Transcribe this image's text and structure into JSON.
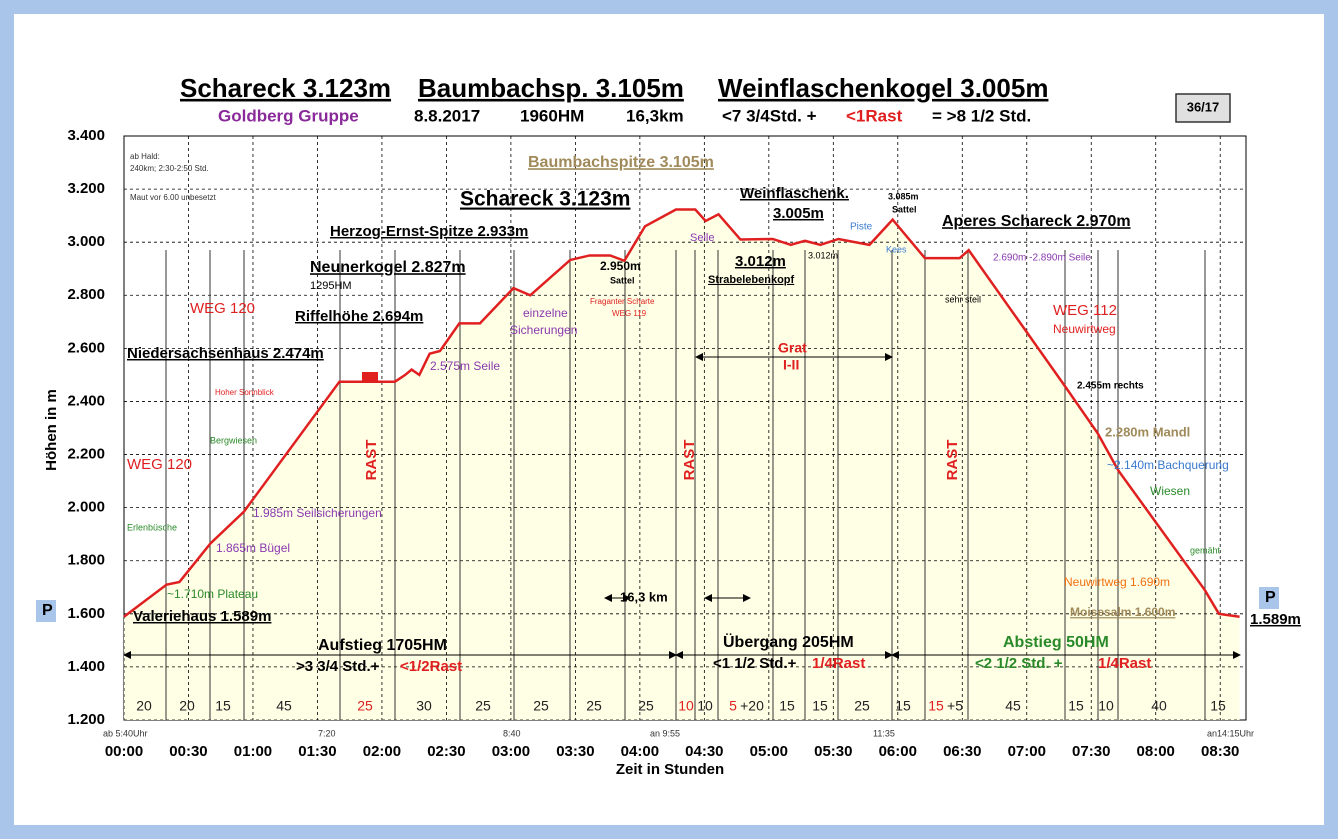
{
  "header": {
    "title_parts": [
      "Schareck 3.123m",
      "Baumbachsp. 3.105m",
      "Weinflaschenkogel 3.005m"
    ],
    "subtitle_parts": [
      {
        "text": "Goldberg Gruppe",
        "color": "#8a2a9a"
      },
      {
        "text": "8.8.2017",
        "color": "#000000"
      },
      {
        "text": "1960HM",
        "color": "#000000"
      },
      {
        "text": "16,3km",
        "color": "#000000"
      },
      {
        "text": "<7 3/4Std. +",
        "color": "#000000"
      },
      {
        "text": "<1Rast",
        "color": "#e02020"
      },
      {
        "text": "= >8 1/2 Std.",
        "color": "#000000"
      }
    ],
    "badge": "36/17"
  },
  "chart_data": {
    "type": "line",
    "color": "#e02020",
    "fill": "#ffffe6",
    "grid": true,
    "y_label": "Höhen in m",
    "x_label": "Zeit in Stunden",
    "x": [
      0,
      0.33,
      0.43,
      0.67,
      0.93,
      1.67,
      2.1,
      2.18,
      2.23,
      2.29,
      2.37,
      2.45,
      2.6,
      2.76,
      3.02,
      3.15,
      3.46,
      3.61,
      3.77,
      3.88,
      4.04,
      4.28,
      4.43,
      4.51,
      4.61,
      4.78,
      5.03,
      5.17,
      5.28,
      5.4,
      5.54,
      5.78,
      5.96,
      6.21,
      6.48,
      6.55,
      7.3,
      7.55,
      7.71,
      8.38,
      8.49,
      8.65
    ],
    "values": [
      1589,
      1710,
      1720,
      1865,
      1985,
      2474,
      2474,
      2500,
      2520,
      2500,
      2580,
      2590,
      2694,
      2694,
      2827,
      2800,
      2933,
      2950,
      2950,
      2930,
      3060,
      3123,
      3123,
      3080,
      3105,
      3010,
      3012,
      2990,
      3005,
      2990,
      3012,
      2990,
      3085,
      2940,
      2940,
      2970,
      2455,
      2280,
      2140,
      1690,
      1600,
      1589
    ],
    "xlim": [
      0,
      8.7
    ],
    "ylim": [
      1200,
      3400
    ],
    "xticks": [
      {
        "value": 0,
        "label": "00:00"
      },
      {
        "value": 0.5,
        "label": "00:30"
      },
      {
        "value": 1,
        "label": "01:00"
      },
      {
        "value": 1.5,
        "label": "01:30"
      },
      {
        "value": 2,
        "label": "02:00"
      },
      {
        "value": 2.5,
        "label": "02:30"
      },
      {
        "value": 3,
        "label": "03:00"
      },
      {
        "value": 3.5,
        "label": "03:30"
      },
      {
        "value": 4,
        "label": "04:00"
      },
      {
        "value": 4.5,
        "label": "04:30"
      },
      {
        "value": 5,
        "label": "05:00"
      },
      {
        "value": 5.5,
        "label": "05:30"
      },
      {
        "value": 6,
        "label": "06:00"
      },
      {
        "value": 6.5,
        "label": "06:30"
      },
      {
        "value": 7,
        "label": "07:00"
      },
      {
        "value": 7.5,
        "label": "07:30"
      },
      {
        "value": 8,
        "label": "08:00"
      },
      {
        "value": 8.5,
        "label": "08:30"
      }
    ],
    "yticks": [
      {
        "value": 1200,
        "label": "1.200"
      },
      {
        "value": 1400,
        "label": "1.400"
      },
      {
        "value": 1600,
        "label": "1.600"
      },
      {
        "value": 1800,
        "label": "1.800"
      },
      {
        "value": 2000,
        "label": "2.000"
      },
      {
        "value": 2200,
        "label": "2.200"
      },
      {
        "value": 2400,
        "label": "2.400"
      },
      {
        "value": 2600,
        "label": "2.600"
      },
      {
        "value": 2800,
        "label": "2.800"
      },
      {
        "value": 3000,
        "label": "3.000"
      },
      {
        "value": 3200,
        "label": "3.200"
      },
      {
        "value": 3400,
        "label": "3.400"
      }
    ],
    "annotations": [
      {
        "text": "ab Hald:",
        "color": "#333333"
      },
      {
        "text": "240km; 2:30-2:50 Std.",
        "color": "#333333"
      },
      {
        "text": "Maut vor 6.00 unbesetzt",
        "color": "#333333"
      },
      {
        "text": "Baumbachspitze 3.105m",
        "color": "#a08a5a"
      },
      {
        "text": "Schareck 3.123m",
        "color": "#000000"
      },
      {
        "text": "Weinflaschenk.",
        "color": "#000000"
      },
      {
        "text": "3.005m",
        "color": "#000000"
      },
      {
        "text": "3.085m",
        "color": "#000000"
      },
      {
        "text": "Sattel",
        "color": "#000000"
      },
      {
        "text": "Herzog-Ernst-Spitze 2.933m",
        "color": "#000000"
      },
      {
        "text": "Aperes Schareck 2.970m",
        "color": "#000000"
      },
      {
        "text": "Seile",
        "color": "#8a3ab0"
      },
      {
        "text": "Piste",
        "color": "#3a7ad0"
      },
      {
        "text": "Kees",
        "color": "#3a7ad0"
      },
      {
        "text": "3.012m",
        "color": "#000000"
      },
      {
        "text": "3.012m",
        "color": "#000000"
      },
      {
        "text": "Strabelebenkopf",
        "color": "#000000"
      },
      {
        "text": "2.690m -2.890m  Seile",
        "color": "#8a3ab0"
      },
      {
        "text": "Neunerkogel 2.827m",
        "color": "#000000"
      },
      {
        "text": "1295HM",
        "color": "#000000"
      },
      {
        "text": "2.950m",
        "color": "#000000"
      },
      {
        "text": "Sattel",
        "color": "#000000"
      },
      {
        "text": "WEG 120",
        "color": "#e02020"
      },
      {
        "text": "Fraganter Scharte",
        "color": "#e02020"
      },
      {
        "text": "WEG 119",
        "color": "#e02020"
      },
      {
        "text": "einzelne",
        "color": "#8a3ab0"
      },
      {
        "text": "Sicherungen",
        "color": "#8a3ab0"
      },
      {
        "text": "Riffelhöhe 2.694m",
        "color": "#000000"
      },
      {
        "text": "sehr steil",
        "color": "#000000"
      },
      {
        "text": "WEG 112",
        "color": "#e02020"
      },
      {
        "text": "Neuwirtweg",
        "color": "#e02020"
      },
      {
        "text": "Grat",
        "color": "#e02020"
      },
      {
        "text": "I-II",
        "color": "#e02020"
      },
      {
        "text": "Niedersachsenhaus 2.474m",
        "color": "#000000"
      },
      {
        "text": "2.575m Seile",
        "color": "#8a3ab0"
      },
      {
        "text": "Hoher Sonnblick",
        "color": "#e02020"
      },
      {
        "text": "2.455m  rechts",
        "color": "#000000"
      },
      {
        "text": "Bergwiesen",
        "color": "#2a8a2a"
      },
      {
        "text": "2.280m Mandl",
        "color": "#a08a5a"
      },
      {
        "text": "~2.140m Bachquerung",
        "color": "#3a7ad0"
      },
      {
        "text": "WEG 120",
        "color": "#e02020"
      },
      {
        "text": "Wiesen",
        "color": "#2a8a2a"
      },
      {
        "text": "1.985m Seilsicherungen",
        "color": "#8a3ab0"
      },
      {
        "text": "Erlenbüsche",
        "color": "#2a8a2a"
      },
      {
        "text": "1.865m Bügel",
        "color": "#8a3ab0"
      },
      {
        "text": "gemäht",
        "color": "#2a8a2a"
      },
      {
        "text": "~1.710m Plateau",
        "color": "#2a8a2a"
      },
      {
        "text": "Neuwirtweg 1.690m",
        "color": "#f07010"
      },
      {
        "text": "Moisesalm 1.600m",
        "color": "#a08a5a"
      },
      {
        "text": "Valeriehaus 1.589m",
        "color": "#000000"
      },
      {
        "text": "1.589m",
        "color": "#000000"
      },
      {
        "text": "16,3 km",
        "color": "#000000"
      },
      {
        "text": "Aufstieg 1705HM",
        "color": "#000000"
      },
      {
        "text": ">3 3/4 Std.+",
        "color": "#000000"
      },
      {
        "text": "<1/2Rast",
        "color": "#e02020"
      },
      {
        "text": "Übergang 205HM",
        "color": "#000000"
      },
      {
        "text": "<1 1/2 Std.+",
        "color": "#000000"
      },
      {
        "text": "1/4Rast",
        "color": "#e02020"
      },
      {
        "text": "Abstieg 50HM",
        "color": "#2a8a2a"
      },
      {
        "text": "<2 1/2 Std. +",
        "color": "#2a8a2a"
      },
      {
        "text": "1/4Rast",
        "color": "#e02020"
      },
      {
        "text": "RAST",
        "color": "#e02020"
      },
      {
        "text": "RAST",
        "color": "#e02020"
      },
      {
        "text": "RAST",
        "color": "#e02020"
      },
      {
        "text": "ab 5:40Uhr",
        "color": "#333333"
      },
      {
        "text": "7:20",
        "color": "#333333"
      },
      {
        "text": "8:40",
        "color": "#333333"
      },
      {
        "text": "an 9:55",
        "color": "#333333"
      },
      {
        "text": "11:35",
        "color": "#333333"
      },
      {
        "text": "an14:15Uhr",
        "color": "#333333"
      },
      {
        "text": "P",
        "color": "#000000"
      },
      {
        "text": "P",
        "color": "#000000"
      }
    ],
    "segment_labels": [
      {
        "text": "20",
        "color": "#222222"
      },
      {
        "text": "20",
        "color": "#222222"
      },
      {
        "text": "15",
        "color": "#222222"
      },
      {
        "text": "45",
        "color": "#222222"
      },
      {
        "text": "25",
        "color": "#e02020"
      },
      {
        "text": "30",
        "color": "#222222"
      },
      {
        "text": "25",
        "color": "#222222"
      },
      {
        "text": "25",
        "color": "#222222"
      },
      {
        "text": "25",
        "color": "#222222"
      },
      {
        "text": "25",
        "color": "#222222"
      },
      {
        "text": "10",
        "color": "#e02020"
      },
      {
        "text": "10",
        "color": "#222222"
      },
      {
        "text": "5",
        "color": "#e02020"
      },
      {
        "text": "+20",
        "color": "#222222"
      },
      {
        "text": "15",
        "color": "#222222"
      },
      {
        "text": "15",
        "color": "#222222"
      },
      {
        "text": "25",
        "color": "#222222"
      },
      {
        "text": "15",
        "color": "#222222"
      },
      {
        "text": "15",
        "color": "#e02020"
      },
      {
        "text": "+5",
        "color": "#222222"
      },
      {
        "text": "45",
        "color": "#222222"
      },
      {
        "text": "15",
        "color": "#222222"
      },
      {
        "text": "10",
        "color": "#222222"
      },
      {
        "text": "40",
        "color": "#222222"
      },
      {
        "text": "15",
        "color": "#222222"
      }
    ]
  }
}
